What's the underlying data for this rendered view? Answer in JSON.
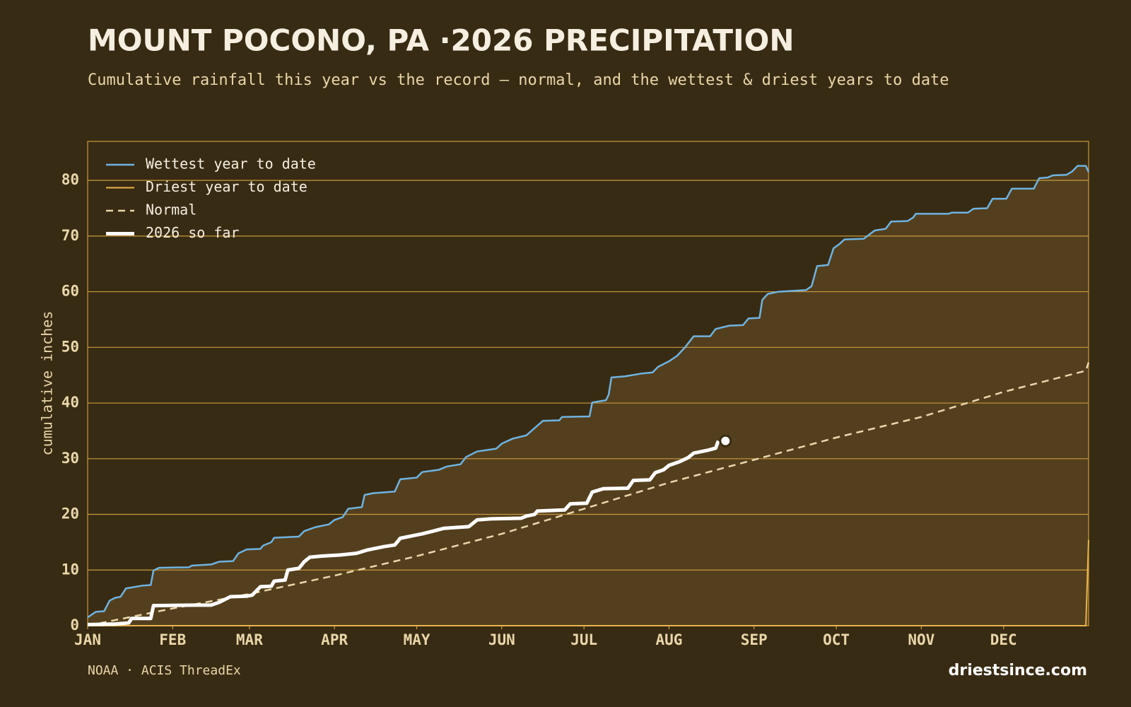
{
  "chart_data": {
    "type": "line",
    "title": "MOUNT POCONO, PA ·2026 PRECIPITATION",
    "subtitle": "Cumulative rainfall this year vs the record — normal, and the wettest & driest years to date",
    "ylabel": "cumulative inches",
    "source": "NOAA · ACIS ThreadEx",
    "credit": "driestsince.com",
    "xlim": [
      0,
      365
    ],
    "xticks": [
      {
        "value": 0,
        "label": "JAN"
      },
      {
        "value": 31,
        "label": "FEB"
      },
      {
        "value": 59,
        "label": "MAR"
      },
      {
        "value": 90,
        "label": "APR"
      },
      {
        "value": 120,
        "label": "MAY"
      },
      {
        "value": 151,
        "label": "JUN"
      },
      {
        "value": 181,
        "label": "JUL"
      },
      {
        "value": 212,
        "label": "AUG"
      },
      {
        "value": 243,
        "label": "SEP"
      },
      {
        "value": 273,
        "label": "OCT"
      },
      {
        "value": 304,
        "label": "NOV"
      },
      {
        "value": 334,
        "label": "DEC"
      }
    ],
    "ylim": [
      0,
      87
    ],
    "yticks": [
      0,
      10,
      20,
      30,
      40,
      50,
      60,
      70,
      80
    ],
    "grid": true,
    "legend": "upper left",
    "series": [
      {
        "name": "Wettest year to date",
        "color": "#6fb3e0",
        "line_style": "solid",
        "line_width": 2.5,
        "area_color": "#533f1e",
        "x": [
          0,
          3,
          6,
          8,
          10,
          12,
          14,
          20,
          23,
          24,
          26,
          37,
          38,
          45,
          48,
          53,
          55,
          58,
          63,
          64,
          67,
          68,
          77,
          79,
          83,
          88,
          90,
          93,
          95,
          100,
          101,
          104,
          112,
          114,
          120,
          122,
          128,
          131,
          136,
          138,
          142,
          149,
          151,
          155,
          160,
          163,
          166,
          172,
          173,
          183,
          184,
          189,
          190,
          191,
          196,
          202,
          206,
          208,
          212,
          215,
          218,
          221,
          227,
          229,
          234,
          239,
          241,
          245,
          246,
          248,
          252,
          262,
          264,
          266,
          270,
          272,
          274,
          276,
          283,
          287,
          291,
          293,
          299,
          301,
          302,
          314,
          315,
          321,
          323,
          328,
          330,
          335,
          337,
          345,
          347,
          350,
          352,
          357,
          359,
          361,
          364,
          365
        ],
        "values": [
          1.5,
          2.5,
          2.6,
          4.5,
          5,
          5.2,
          6.7,
          7.2,
          7.3,
          9.9,
          10.4,
          10.5,
          10.8,
          11,
          11.5,
          11.6,
          13,
          13.7,
          13.8,
          14.4,
          15,
          15.8,
          16,
          17,
          17.7,
          18.2,
          19,
          19.5,
          21,
          21.3,
          23.5,
          23.8,
          24.1,
          26.3,
          26.6,
          27.6,
          28,
          28.6,
          29,
          30.3,
          31.3,
          31.8,
          32.7,
          33.6,
          34.2,
          35.5,
          36.8,
          36.9,
          37.5,
          37.6,
          40.1,
          40.5,
          41.5,
          44.6,
          44.8,
          45.3,
          45.5,
          46.5,
          47.5,
          48.5,
          50.1,
          52,
          52,
          53.3,
          53.9,
          54,
          55.2,
          55.3,
          58.5,
          59.6,
          60,
          60.3,
          61,
          64.6,
          64.8,
          67.8,
          68.5,
          69.4,
          69.5,
          71,
          71.3,
          72.6,
          72.7,
          73.3,
          74,
          74,
          74.2,
          74.2,
          74.9,
          75,
          76.7,
          76.7,
          78.5,
          78.5,
          80.4,
          80.5,
          80.9,
          81,
          81.6,
          82.6,
          82.6,
          81.5
        ]
      },
      {
        "name": "Driest year to date",
        "color": "#e8b44a",
        "line_style": "solid",
        "line_width": 2,
        "x": [
          0,
          364,
          365
        ],
        "values": [
          0,
          0,
          15.4
        ]
      },
      {
        "name": "Normal",
        "color": "#e9d6aa",
        "line_style": "dashed",
        "line_width": 2.5,
        "x": [
          0,
          31,
          59,
          90,
          120,
          151,
          181,
          212,
          243,
          273,
          304,
          334,
          364,
          365
        ],
        "values": [
          0,
          3.1,
          5.7,
          9,
          12.5,
          16.5,
          21,
          25.7,
          29.8,
          33.8,
          37.5,
          42,
          45.8,
          47.3
        ]
      },
      {
        "name": "2026 so far",
        "color": "#ffffff",
        "line_style": "solid",
        "line_width": 5,
        "end_marker": true,
        "x": [
          0,
          10,
          15,
          16,
          23,
          24,
          40,
          45,
          48,
          52,
          58,
          60,
          63,
          67,
          68,
          72,
          73,
          77,
          79,
          81,
          85,
          92,
          98,
          102,
          108,
          112,
          114,
          118,
          122,
          126,
          130,
          139,
          142,
          147,
          158,
          160,
          163,
          164,
          174,
          176,
          182,
          184,
          188,
          197,
          199,
          205,
          207,
          210,
          212,
          216,
          219,
          221,
          226,
          229,
          230
        ],
        "values": [
          0.2,
          0.3,
          0.5,
          1.3,
          1.3,
          3.6,
          3.7,
          3.7,
          4.2,
          5.2,
          5.3,
          5.5,
          7,
          7.1,
          8,
          8.2,
          10,
          10.3,
          11.5,
          12.3,
          12.5,
          12.7,
          13,
          13.6,
          14.2,
          14.5,
          15.7,
          16.1,
          16.5,
          17,
          17.5,
          17.8,
          19,
          19.2,
          19.3,
          19.7,
          20,
          20.6,
          20.8,
          21.9,
          22,
          24,
          24.6,
          24.7,
          26.1,
          26.2,
          27.5,
          28,
          28.8,
          29.5,
          30.2,
          31,
          31.5,
          31.9,
          33.2
        ]
      }
    ]
  }
}
